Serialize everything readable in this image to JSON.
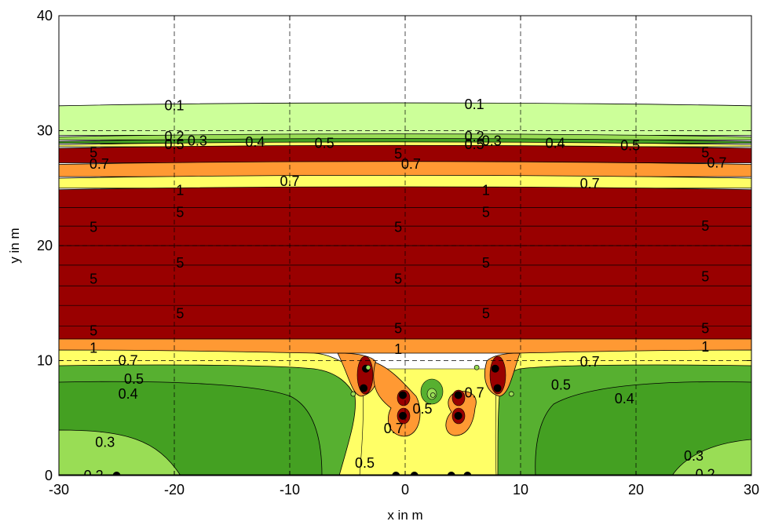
{
  "chart_data": {
    "type": "contour",
    "xlabel": "x in m",
    "ylabel": "y in m",
    "xlim": [
      -30,
      30
    ],
    "ylim": [
      0,
      40
    ],
    "xticks": [
      -30,
      -20,
      -10,
      0,
      10,
      20,
      30
    ],
    "yticks": [
      0,
      10,
      20,
      30,
      40
    ],
    "grid": true,
    "contour_levels": [
      0.1,
      0.2,
      0.3,
      0.4,
      0.5,
      0.7,
      1,
      5
    ],
    "level_colors": [
      "#ffffff",
      "#ccff99",
      "#99dd55",
      "#44a022",
      "#57b030",
      "#ffff66",
      "#ff9933",
      "#990000"
    ],
    "bands": [
      {
        "level": 0.1,
        "y_from": 29.6,
        "y_to": 32.3,
        "color": "#ccff99"
      },
      {
        "level": 0.2,
        "y_from": 29.2,
        "y_to": 29.6,
        "color": "#99dd55"
      },
      {
        "level": 0.3,
        "y_from": 28.9,
        "y_to": 29.2,
        "color": "#44a022"
      },
      {
        "level": 0.4,
        "y_from": 28.6,
        "y_to": 28.9,
        "color": "#ffff66"
      },
      {
        "level": 0.5,
        "y_from": 27.2,
        "y_to": 28.6,
        "color": "#990000"
      },
      {
        "level": 0.7,
        "y_from": 26.0,
        "y_to": 27.2,
        "color": "#ff9933"
      },
      {
        "level": 0.7,
        "y_from": 25.0,
        "y_to": 26.0,
        "color": "#ffff66"
      },
      {
        "level": 1,
        "y_from": 11.5,
        "y_to": 25.0,
        "color": "#990000"
      }
    ],
    "contour_labels": [
      {
        "x": -20,
        "y": 32.2,
        "text": "0.1"
      },
      {
        "x": 6,
        "y": 32.3,
        "text": "0.1"
      },
      {
        "x": -20,
        "y": 29.5,
        "text": "0.2"
      },
      {
        "x": 6,
        "y": 29.5,
        "text": "0.2"
      },
      {
        "x": -18,
        "y": 29.1,
        "text": "0.3"
      },
      {
        "x": 7.5,
        "y": 29.1,
        "text": "0.3"
      },
      {
        "x": -20,
        "y": 28.8,
        "text": "0.5"
      },
      {
        "x": 6,
        "y": 28.8,
        "text": "0.5"
      },
      {
        "x": -13,
        "y": 29.0,
        "text": "0.4"
      },
      {
        "x": 13,
        "y": 28.9,
        "text": "0.4"
      },
      {
        "x": -7,
        "y": 28.9,
        "text": "0.5"
      },
      {
        "x": 19.5,
        "y": 28.7,
        "text": "0.5"
      },
      {
        "x": -27,
        "y": 28.1,
        "text": "5"
      },
      {
        "x": -0.6,
        "y": 28.0,
        "text": "5"
      },
      {
        "x": 26,
        "y": 28.1,
        "text": "5"
      },
      {
        "x": -26.5,
        "y": 27.1,
        "text": "0.7"
      },
      {
        "x": 0.5,
        "y": 27.1,
        "text": "0.7"
      },
      {
        "x": 27,
        "y": 27.2,
        "text": "0.7"
      },
      {
        "x": -10,
        "y": 25.6,
        "text": "0.7"
      },
      {
        "x": 16,
        "y": 25.4,
        "text": "0.7"
      },
      {
        "x": -19.5,
        "y": 24.8,
        "text": "1"
      },
      {
        "x": 7,
        "y": 24.8,
        "text": "1"
      },
      {
        "x": -19.5,
        "y": 22.9,
        "text": "5"
      },
      {
        "x": 7,
        "y": 22.9,
        "text": "5"
      },
      {
        "x": -27,
        "y": 21.6,
        "text": "5"
      },
      {
        "x": -0.6,
        "y": 21.6,
        "text": "5"
      },
      {
        "x": 26,
        "y": 21.7,
        "text": "5"
      },
      {
        "x": -19.5,
        "y": 18.5,
        "text": "5"
      },
      {
        "x": 7,
        "y": 18.5,
        "text": "5"
      },
      {
        "x": -27,
        "y": 17.1,
        "text": "5"
      },
      {
        "x": -0.6,
        "y": 17.1,
        "text": "5"
      },
      {
        "x": 26,
        "y": 17.3,
        "text": "5"
      },
      {
        "x": -19.5,
        "y": 14.1,
        "text": "5"
      },
      {
        "x": 7,
        "y": 14.1,
        "text": "5"
      },
      {
        "x": -27,
        "y": 12.6,
        "text": "5"
      },
      {
        "x": -0.6,
        "y": 12.8,
        "text": "5"
      },
      {
        "x": 26,
        "y": 12.8,
        "text": "5"
      },
      {
        "x": -27,
        "y": 11.1,
        "text": "1"
      },
      {
        "x": -0.6,
        "y": 11.0,
        "text": "1"
      },
      {
        "x": 26,
        "y": 11.2,
        "text": "1"
      },
      {
        "x": -24,
        "y": 10.0,
        "text": "0.7"
      },
      {
        "x": 16,
        "y": 9.9,
        "text": "0.7"
      },
      {
        "x": -23.5,
        "y": 8.4,
        "text": "0.5"
      },
      {
        "x": 13.5,
        "y": 7.9,
        "text": "0.5"
      },
      {
        "x": -24,
        "y": 7.1,
        "text": "0.4"
      },
      {
        "x": 19,
        "y": 6.7,
        "text": "0.4"
      },
      {
        "x": 6,
        "y": 7.2,
        "text": "0.7"
      },
      {
        "x": 1.5,
        "y": 5.8,
        "text": "0.5"
      },
      {
        "x": -1,
        "y": 4.1,
        "text": "0.7"
      },
      {
        "x": -26,
        "y": 2.9,
        "text": "0.3"
      },
      {
        "x": 25,
        "y": 1.7,
        "text": "0.3"
      },
      {
        "x": -3.5,
        "y": 1.1,
        "text": "0.5"
      },
      {
        "x": -27,
        "y": 0.0,
        "text": "0.2"
      },
      {
        "x": 26,
        "y": 0.1,
        "text": "0.2"
      }
    ],
    "markers": [
      {
        "x": -3.4,
        "y": 9.3
      },
      {
        "x": -3.6,
        "y": 7.6
      },
      {
        "x": -0.2,
        "y": 7.0
      },
      {
        "x": -0.2,
        "y": 5.2
      },
      {
        "x": 4.6,
        "y": 7.0
      },
      {
        "x": 4.6,
        "y": 5.2
      },
      {
        "x": 7.8,
        "y": 9.3
      },
      {
        "x": 8.0,
        "y": 7.6
      },
      {
        "x": -25,
        "y": 0
      },
      {
        "x": -0.8,
        "y": 0
      },
      {
        "x": 0.8,
        "y": 0
      },
      {
        "x": 4.0,
        "y": 0
      },
      {
        "x": 5.4,
        "y": 0
      }
    ],
    "small_markers": [
      {
        "x": -3.2,
        "y": 9.4
      },
      {
        "x": 6.2,
        "y": 9.4
      },
      {
        "x": -4.5,
        "y": 7.1
      },
      {
        "x": 9.2,
        "y": 7.1
      },
      {
        "x": 2.4,
        "y": 7.0
      }
    ]
  }
}
